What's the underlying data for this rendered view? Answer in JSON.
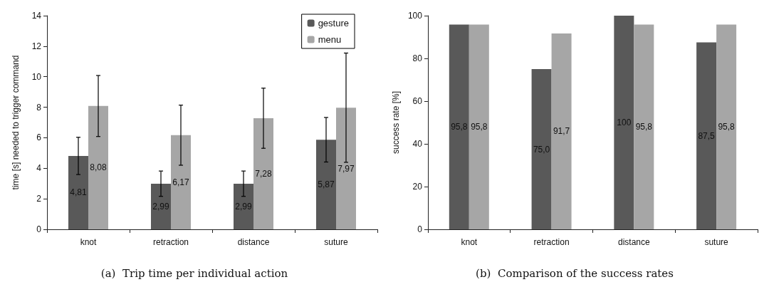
{
  "chart_data": [
    {
      "type": "bar",
      "title": "(a)  Trip time per individual action",
      "ylabel": "time [s] needed to trigger command",
      "categories": [
        "knot",
        "retraction",
        "distance",
        "suture"
      ],
      "series": [
        {
          "name": "gesture",
          "color": "#595959",
          "values": [
            4.81,
            2.99,
            2.99,
            5.87
          ],
          "errors": [
            1.22,
            0.83,
            0.83,
            1.46
          ],
          "value_labels": [
            "4,81",
            "2,99",
            "2,99",
            "5,87"
          ]
        },
        {
          "name": "menu",
          "color": "#a6a6a6",
          "values": [
            8.08,
            6.17,
            7.28,
            7.97
          ],
          "errors": [
            2.0,
            1.97,
            1.97,
            3.58
          ],
          "value_labels": [
            "8,08",
            "6,17",
            "7,28",
            "7,97"
          ]
        }
      ],
      "ylim": [
        0,
        14
      ],
      "yticks": [
        0,
        2,
        4,
        6,
        8,
        10,
        12,
        14
      ],
      "grid": false,
      "legend": "top right"
    },
    {
      "type": "bar",
      "title": "(b)  Comparison of the success rates",
      "ylabel": "success rate [%]",
      "categories": [
        "knot",
        "retraction",
        "distance",
        "suture"
      ],
      "series": [
        {
          "color": "#595959",
          "values": [
            95.8,
            75.0,
            100,
            87.5
          ],
          "value_labels": [
            "95,8",
            "75,0",
            "100",
            "87,5"
          ]
        },
        {
          "color": "#a6a6a6",
          "values": [
            95.8,
            91.7,
            95.8,
            95.8
          ],
          "value_labels": [
            "95,8",
            "91,7",
            "95,8",
            "95,8"
          ]
        }
      ],
      "ylim": [
        0,
        100
      ],
      "yticks": [
        0,
        20,
        40,
        60,
        80,
        100
      ],
      "grid": false,
      "legend": false
    }
  ]
}
